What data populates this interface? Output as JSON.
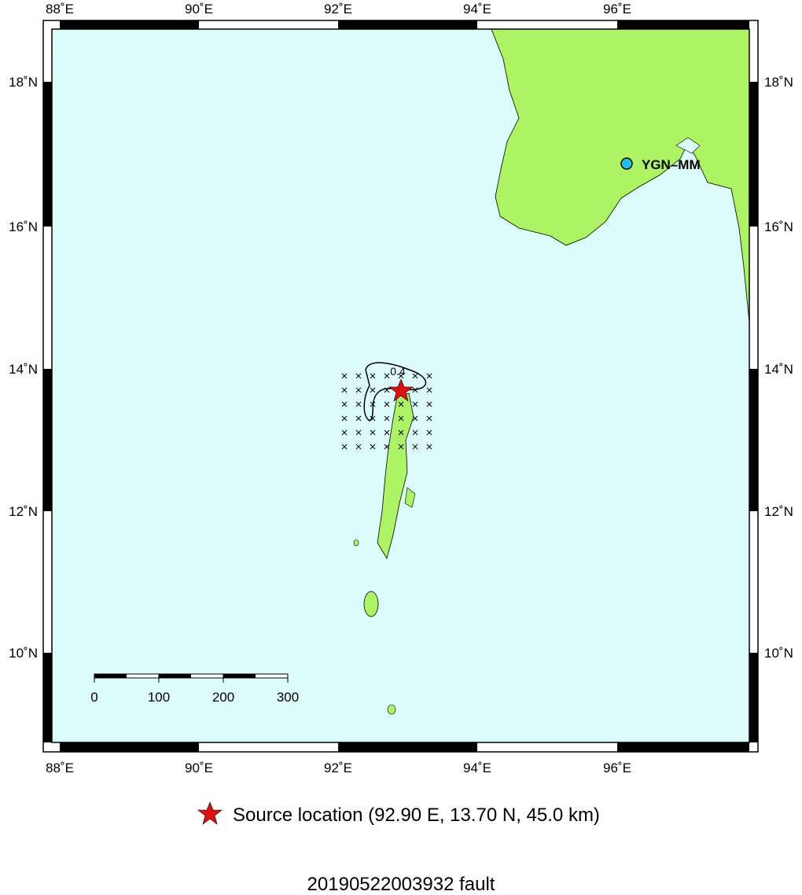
{
  "map": {
    "x_ticks": [
      "88˚E",
      "90˚E",
      "92˚E",
      "94˚E",
      "96˚E"
    ],
    "y_ticks": [
      "18˚N",
      "16˚N",
      "14˚N",
      "12˚N",
      "10˚N"
    ],
    "station": "YGN–MM",
    "contour_label": "0.4",
    "scale_bar": [
      "0",
      "100",
      "200",
      "300"
    ],
    "legend": "Source location (92.90 E, 13.70 N, 45.0 km)",
    "title": "20190522003932 fault"
  }
}
